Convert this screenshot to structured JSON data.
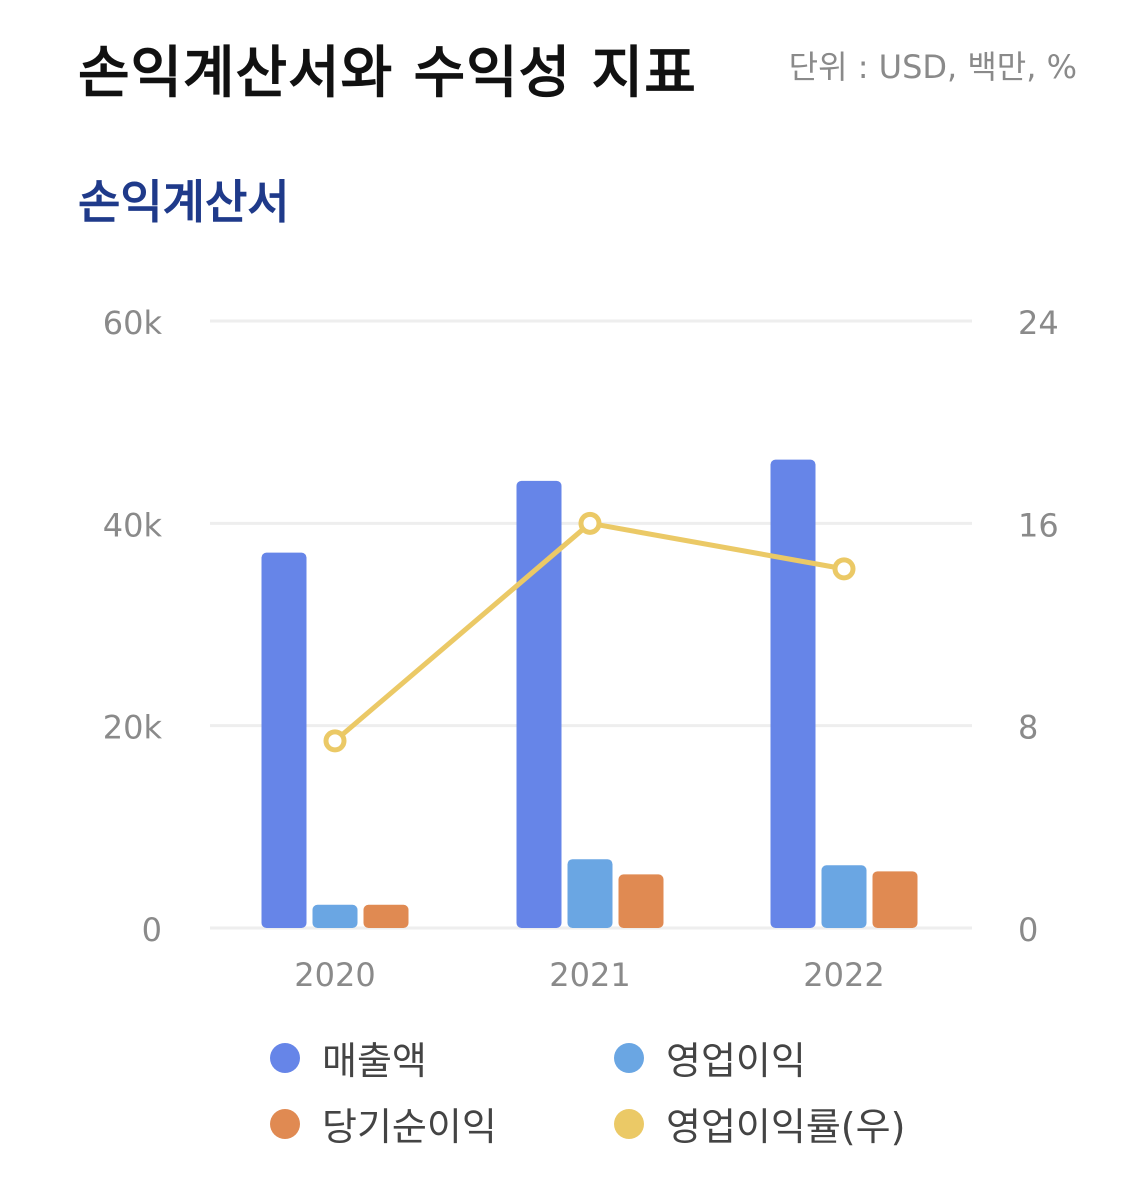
{
  "header": {
    "title": "손익계산서와 수익성 지표",
    "unit": "단위 : USD, 백만, %"
  },
  "section": {
    "title": "손익계산서"
  },
  "colors": {
    "revenue": "#6685e8",
    "operating": "#6aa6e3",
    "net": "#e08a52",
    "margin": "#ebc966",
    "grid": "#eeeeee",
    "axis_text": "#8a8a8a"
  },
  "chart_data": {
    "type": "bar",
    "categories": [
      "2020",
      "2021",
      "2022"
    ],
    "series": [
      {
        "name": "매출액",
        "axis": "left",
        "type": "bar",
        "color": "#6685e8",
        "values": [
          37100,
          44200,
          46300
        ]
      },
      {
        "name": "영업이익",
        "axis": "left",
        "type": "bar",
        "color": "#6aa6e3",
        "values": [
          2300,
          6800,
          6200
        ]
      },
      {
        "name": "당기순이익",
        "axis": "left",
        "type": "bar",
        "color": "#e08a52",
        "values": [
          2300,
          5300,
          5600
        ]
      },
      {
        "name": "영업이익률(우)",
        "axis": "right",
        "type": "line",
        "color": "#ebc966",
        "values": [
          7.4,
          16.0,
          14.2
        ]
      }
    ],
    "left_axis": {
      "ylim": [
        0,
        60000
      ],
      "ticks": [
        "0",
        "20k",
        "40k",
        "60k"
      ],
      "tick_values": [
        0,
        20000,
        40000,
        60000
      ]
    },
    "right_axis": {
      "ylim": [
        0,
        24
      ],
      "ticks": [
        "0",
        "8",
        "16",
        "24"
      ],
      "tick_values": [
        0,
        8,
        16,
        24
      ]
    },
    "grid": true,
    "legend_position": "bottom"
  }
}
